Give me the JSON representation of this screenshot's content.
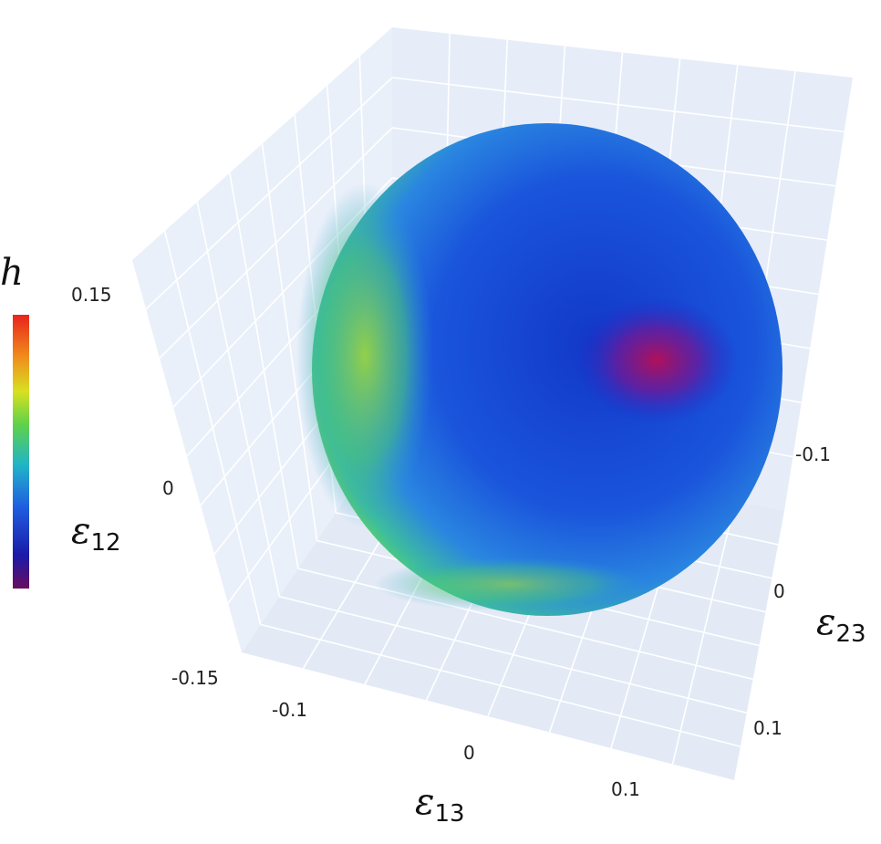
{
  "chart_data": {
    "type": "surface",
    "projection": "3d",
    "colorscale": "jet",
    "colorbar": {
      "title": "h",
      "low_color": "#6a0d5f",
      "high_color": "#e8241c"
    },
    "axes": {
      "z": {
        "label": "ε",
        "label_sub": "12",
        "ticks": [
          "0.15",
          "0",
          "-0.15"
        ],
        "range": [
          -0.15,
          0.15
        ]
      },
      "x": {
        "label": "ε",
        "label_sub": "13",
        "ticks": [
          "-0.1",
          "0",
          "0.1"
        ],
        "range": [
          -0.15,
          0.15
        ]
      },
      "y": {
        "label": "ε",
        "label_sub": "23",
        "ticks": [
          "-0.1",
          "0",
          "0.1"
        ],
        "range": [
          -0.15,
          0.15
        ]
      }
    },
    "grid": true,
    "background_color": "#e8eef8"
  }
}
